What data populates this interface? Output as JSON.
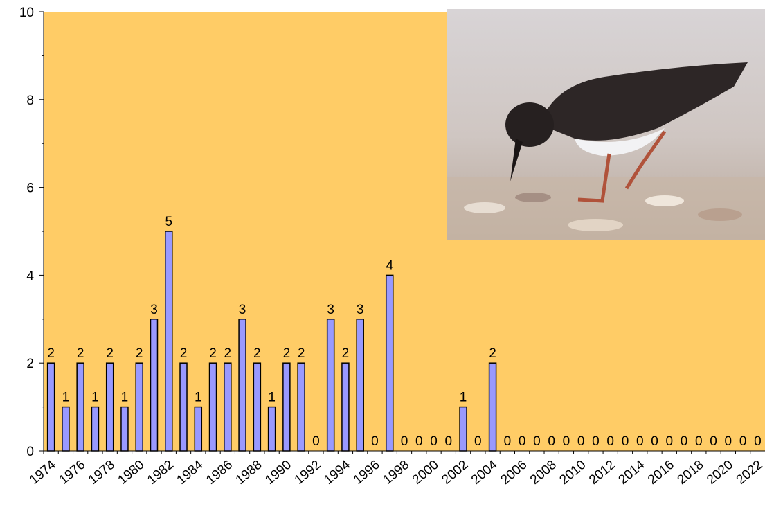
{
  "chart_data": {
    "type": "bar",
    "categories": [
      "1974",
      null,
      "1976",
      null,
      "1978",
      null,
      "1980",
      null,
      "1982",
      null,
      "1984",
      null,
      "1986",
      null,
      "1988",
      null,
      "1990",
      null,
      "1992",
      null,
      "1994",
      null,
      "1996",
      null,
      "1998",
      null,
      "2000",
      null,
      "2002",
      null,
      "2004",
      null,
      "2006",
      null,
      "2008",
      null,
      "2010",
      null,
      "2012",
      null,
      "2014",
      null,
      "2016",
      null,
      "2018",
      null,
      "2020",
      null,
      "2022"
    ],
    "values": [
      2,
      1,
      2,
      1,
      2,
      1,
      2,
      3,
      5,
      2,
      1,
      2,
      2,
      3,
      2,
      1,
      2,
      2,
      0,
      3,
      2,
      3,
      0,
      4,
      0,
      0,
      0,
      0,
      1,
      0,
      2,
      0,
      0,
      0,
      0,
      0,
      0,
      0,
      0,
      0,
      0,
      0,
      0,
      0,
      0,
      0,
      0,
      0,
      0
    ],
    "color": "#9999ff",
    "background": "#ffcc66",
    "ylim": [
      0,
      10
    ],
    "yticks": [
      0,
      2,
      4,
      6,
      8,
      10
    ],
    "grid": false
  }
}
